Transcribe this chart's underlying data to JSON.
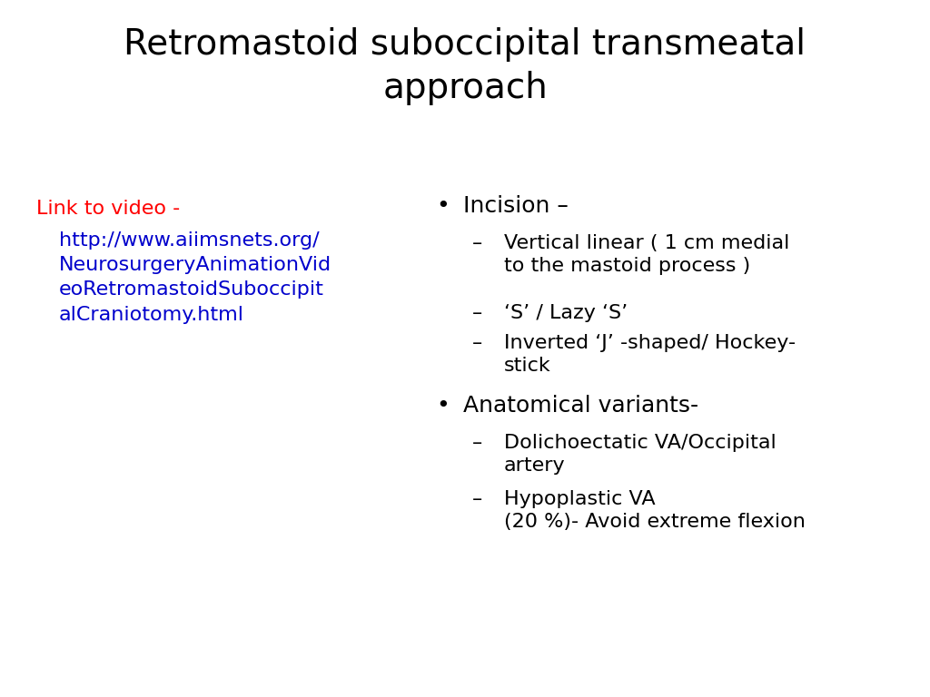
{
  "title_line1": "Retromastoid suboccipital transmeatal",
  "title_line2": "approach",
  "title_fontsize": 28,
  "title_color": "#000000",
  "background_color": "#ffffff",
  "link_label": "Link to video -",
  "link_label_color": "#ff0000",
  "link_url": "http://www.aiimsnets.org/\nNeurosurgeryAnimationVid\neoRetromastoidSuboccipit\nalCraniotomy.html",
  "link_url_color": "#0000cc",
  "link_fontsize": 16,
  "bullet1": "Incision –",
  "sub1_1": "Vertical linear ( 1 cm medial\nto the mastoid process )",
  "sub1_2": "‘S’ / Lazy ‘S’",
  "sub1_3": "Inverted ‘J’ -shaped/ Hockey-\nstick",
  "bullet2": "Anatomical variants-",
  "sub2_1": "Dolichoectatic VA/Occipital\nartery",
  "sub2_2": "Hypoplastic VA\n(20 %)- Avoid extreme flexion",
  "text_color": "#000000",
  "bullet_fontsize": 18,
  "sub_fontsize": 16,
  "dash": "–  "
}
